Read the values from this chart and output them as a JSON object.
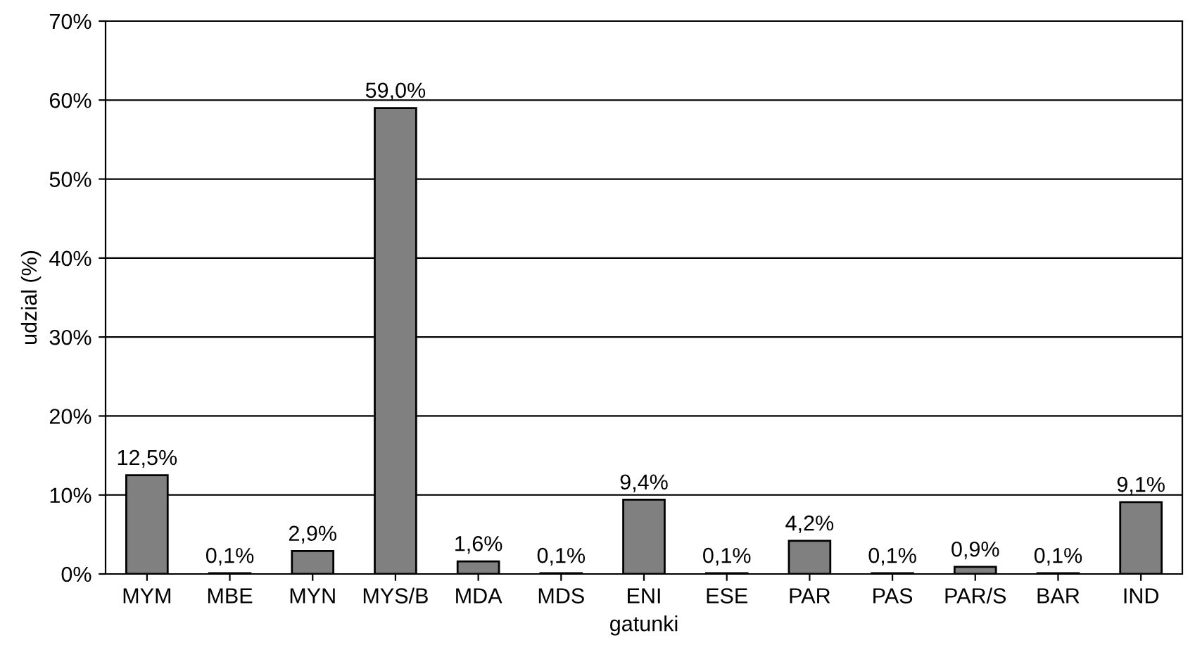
{
  "chart_data": {
    "type": "bar",
    "xlabel": "gatunki",
    "ylabel": "udzial (%)",
    "categories": [
      "MYM",
      "MBE",
      "MYN",
      "MYS/B",
      "MDA",
      "MDS",
      "ENI",
      "ESE",
      "PAR",
      "PAS",
      "PAR/S",
      "BAR",
      "IND"
    ],
    "values": [
      12.5,
      0.1,
      2.9,
      59.0,
      1.6,
      0.1,
      9.4,
      0.1,
      4.2,
      0.1,
      0.9,
      0.1,
      9.1
    ],
    "value_labels": [
      "12,5%",
      "0,1%",
      "2,9%",
      "59,0%",
      "1,6%",
      "0,1%",
      "9,4%",
      "0,1%",
      "4,2%",
      "0,1%",
      "0,9%",
      "0,1%",
      "9,1%"
    ],
    "color": "#808080",
    "ylim": [
      0,
      70
    ],
    "yticks": [
      {
        "value": 0,
        "label": "0%"
      },
      {
        "value": 10,
        "label": "10%"
      },
      {
        "value": 20,
        "label": "20%"
      },
      {
        "value": 30,
        "label": "30%"
      },
      {
        "value": 40,
        "label": "40%"
      },
      {
        "value": 50,
        "label": "50%"
      },
      {
        "value": 60,
        "label": "60%"
      },
      {
        "value": 70,
        "label": "70%"
      }
    ],
    "grid": "y",
    "legend": false
  }
}
